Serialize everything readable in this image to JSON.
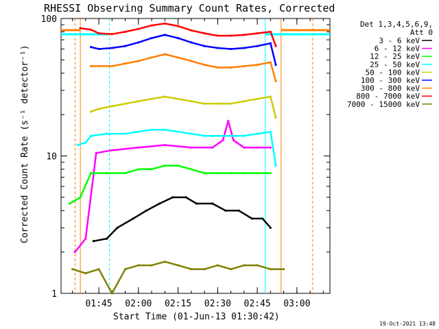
{
  "chart_data": {
    "type": "line",
    "title": "RHESSI Observing Summary Count Rates, Corrected",
    "xlabel": "Start Time (01-Jun-13 01:30:42)",
    "ylabel": "Corrected Count Rate (s⁻¹ detector⁻¹)",
    "y_scale": "log",
    "ylim": [
      1,
      100
    ],
    "xlim": [
      "01:30:42",
      "03:12:30"
    ],
    "x_ticks": [
      "01:45",
      "02:00",
      "02:15",
      "02:30",
      "02:45",
      "03:00"
    ],
    "y_ticks": [
      "1",
      "10",
      "100"
    ],
    "legend": {
      "placement": "right",
      "header": [
        "Det 1,3,4,5,6,9,",
        "Att 0"
      ],
      "labels": [
        "3 - 6 keV",
        "6 - 12 keV",
        "12 - 25 keV",
        "25 - 50 keV",
        "50 - 100 keV",
        "100 - 300 keV",
        "300 - 800 keV",
        "800 - 7000 keV",
        "7000 - 15000 keV"
      ]
    },
    "series": [
      {
        "name": "3 - 6 keV",
        "color": "#000000",
        "x": [
          "01:43",
          "01:48",
          "01:52",
          "01:58",
          "02:03",
          "02:08",
          "02:13",
          "02:18",
          "02:22",
          "02:28",
          "02:33",
          "02:38",
          "02:43",
          "02:47",
          "02:50"
        ],
        "values": [
          2.4,
          2.5,
          3.0,
          3.5,
          4.0,
          4.5,
          5.0,
          5.0,
          4.5,
          4.5,
          4.0,
          4.0,
          3.5,
          3.5,
          3.0
        ]
      },
      {
        "name": "6 - 12 keV",
        "color": "#ff00ff",
        "x": [
          "01:36",
          "01:40",
          "01:44",
          "01:50",
          "02:00",
          "02:10",
          "02:20",
          "02:28",
          "02:32",
          "02:34",
          "02:36",
          "02:40",
          "02:45",
          "02:50"
        ],
        "values": [
          2.0,
          2.5,
          10.5,
          11.0,
          11.5,
          12.0,
          11.5,
          11.5,
          13.0,
          18.0,
          13.0,
          11.5,
          11.5,
          11.5
        ]
      },
      {
        "name": "12 - 25 keV",
        "color": "#00ff00",
        "x": [
          "01:34",
          "01:38",
          "01:42",
          "01:48",
          "01:55",
          "02:00",
          "02:05",
          "02:10",
          "02:15",
          "02:20",
          "02:25",
          "02:30",
          "02:35",
          "02:40",
          "02:45",
          "02:50"
        ],
        "values": [
          4.5,
          5.0,
          7.5,
          7.5,
          7.5,
          8.0,
          8.0,
          8.5,
          8.5,
          8.0,
          7.5,
          7.5,
          7.5,
          7.5,
          7.5,
          7.5
        ]
      },
      {
        "name": "25 - 50 keV",
        "color": "#00ffff",
        "x": [
          "01:37",
          "01:40",
          "01:42",
          "01:48",
          "01:55",
          "02:00",
          "02:05",
          "02:10",
          "02:15",
          "02:20",
          "02:25",
          "02:30",
          "02:35",
          "02:40",
          "02:45",
          "02:50",
          "02:52"
        ],
        "values": [
          12.0,
          12.5,
          14.0,
          14.5,
          14.5,
          15.0,
          15.5,
          15.5,
          15.0,
          14.5,
          14.0,
          14.0,
          14.0,
          14.0,
          14.5,
          15.0,
          8.5
        ]
      },
      {
        "name": "50 - 100 keV",
        "color": "#cccc00",
        "x": [
          "01:42",
          "01:45",
          "01:50",
          "01:55",
          "02:00",
          "02:05",
          "02:10",
          "02:15",
          "02:20",
          "02:25",
          "02:30",
          "02:35",
          "02:40",
          "02:45",
          "02:50",
          "02:52"
        ],
        "values": [
          21,
          22,
          23,
          24,
          25,
          26,
          27,
          26,
          25,
          24,
          24,
          24,
          25,
          26,
          27,
          19
        ]
      },
      {
        "name": "100 - 300 keV",
        "color": "#0000ff",
        "x": [
          "01:42",
          "01:45",
          "01:50",
          "01:55",
          "02:00",
          "02:05",
          "02:10",
          "02:15",
          "02:20",
          "02:25",
          "02:30",
          "02:35",
          "02:40",
          "02:45",
          "02:50",
          "02:52"
        ],
        "values": [
          62,
          60,
          61,
          63,
          67,
          72,
          76,
          72,
          67,
          63,
          61,
          60,
          61,
          63,
          66,
          46
        ]
      },
      {
        "name": "300 - 800 keV",
        "color": "#ff7f00",
        "x": [
          "01:42",
          "01:45",
          "01:50",
          "01:55",
          "02:00",
          "02:05",
          "02:10",
          "02:15",
          "02:20",
          "02:25",
          "02:30",
          "02:35",
          "02:40",
          "02:45",
          "02:50",
          "02:52"
        ],
        "values": [
          45,
          45,
          45,
          47,
          49,
          52,
          55,
          52,
          49,
          46,
          44,
          44,
          45,
          46,
          48,
          35
        ]
      },
      {
        "name": "800 - 7000 keV",
        "color": "#ff0000",
        "x": [
          "01:38",
          "01:42",
          "01:45",
          "01:50",
          "01:55",
          "02:00",
          "02:05",
          "02:10",
          "02:15",
          "02:20",
          "02:25",
          "02:30",
          "02:35",
          "02:40",
          "02:45",
          "02:50",
          "02:52"
        ],
        "values": [
          85,
          83,
          78,
          77,
          80,
          84,
          89,
          92,
          88,
          82,
          78,
          75,
          75,
          76,
          78,
          80,
          63
        ]
      },
      {
        "name": "7000 - 15000 keV",
        "color": "#808000",
        "x": [
          "01:35",
          "01:40",
          "01:45",
          "01:50",
          "01:55",
          "02:00",
          "02:05",
          "02:10",
          "02:15",
          "02:20",
          "02:25",
          "02:30",
          "02:35",
          "02:40",
          "02:45",
          "02:50",
          "02:55"
        ],
        "values": [
          1.5,
          1.4,
          1.5,
          1.0,
          1.5,
          1.6,
          1.6,
          1.7,
          1.6,
          1.5,
          1.5,
          1.6,
          1.5,
          1.6,
          1.6,
          1.5,
          1.5
        ]
      }
    ]
  },
  "footer": {
    "timestamp": "19-Oct-2021 13:48"
  }
}
